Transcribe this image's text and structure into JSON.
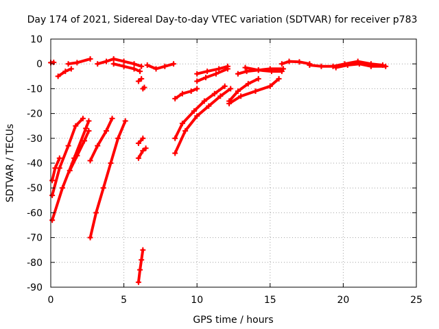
{
  "chart_data": {
    "type": "scatter",
    "title": "Day 174 of 2021, Sidereal Day-to-day VTEC variation (SDTVAR) for receiver p783",
    "xlabel": "GPS time / hours",
    "ylabel": "SDTVAR / TECUs",
    "xlim": [
      0,
      25
    ],
    "ylim": [
      -90,
      10
    ],
    "xticks": [
      "0",
      "5",
      "10",
      "15",
      "20",
      "25"
    ],
    "yticks": [
      "10",
      "0",
      "-10",
      "-20",
      "-30",
      "-40",
      "-50",
      "-60",
      "-70",
      "-80",
      "-90"
    ],
    "grid": true,
    "marker": "plus",
    "series_color": "#ff0000",
    "series": [
      {
        "name": "seg1",
        "points": [
          [
            0.0,
            0.5
          ],
          [
            0.2,
            0.6
          ]
        ]
      },
      {
        "name": "seg2",
        "points": [
          [
            0.5,
            -5
          ],
          [
            1.0,
            -3
          ],
          [
            1.4,
            -2
          ]
        ]
      },
      {
        "name": "seg3",
        "points": [
          [
            1.2,
            0
          ],
          [
            1.8,
            0.5
          ],
          [
            2.7,
            2
          ]
        ]
      },
      {
        "name": "seg4",
        "points": [
          [
            3.2,
            0
          ],
          [
            3.8,
            1
          ],
          [
            4.3,
            2
          ],
          [
            5.0,
            1
          ],
          [
            5.7,
            0
          ],
          [
            6.2,
            -1
          ]
        ]
      },
      {
        "name": "seg5",
        "points": [
          [
            4.3,
            0
          ],
          [
            5.0,
            -1
          ],
          [
            5.7,
            -2
          ],
          [
            6.1,
            -3
          ]
        ]
      },
      {
        "name": "seg6",
        "points": [
          [
            6.6,
            -0.5
          ],
          [
            7.2,
            -2
          ],
          [
            7.8,
            -1
          ],
          [
            8.4,
            0
          ]
        ]
      },
      {
        "name": "seg7",
        "points": [
          [
            0.1,
            -47
          ],
          [
            0.3,
            -42
          ],
          [
            0.6,
            -38
          ]
        ]
      },
      {
        "name": "seg8",
        "points": [
          [
            0.1,
            -53
          ],
          [
            0.6,
            -42
          ],
          [
            1.2,
            -33
          ],
          [
            1.7,
            -25
          ],
          [
            2.2,
            -22
          ]
        ]
      },
      {
        "name": "seg9",
        "points": [
          [
            0.1,
            -63
          ],
          [
            0.8,
            -50
          ],
          [
            1.6,
            -38
          ],
          [
            2.4,
            -26
          ],
          [
            2.6,
            -23
          ]
        ]
      },
      {
        "name": "seg10",
        "points": [
          [
            1.3,
            -43
          ],
          [
            1.8,
            -37
          ],
          [
            2.3,
            -31
          ],
          [
            2.6,
            -27
          ]
        ]
      },
      {
        "name": "seg11",
        "points": [
          [
            2.7,
            -39
          ],
          [
            3.2,
            -33
          ],
          [
            3.8,
            -27
          ],
          [
            4.2,
            -22
          ]
        ]
      },
      {
        "name": "seg12",
        "points": [
          [
            2.7,
            -70
          ],
          [
            3.1,
            -60
          ],
          [
            3.6,
            -50
          ],
          [
            4.1,
            -40
          ],
          [
            4.6,
            -30
          ],
          [
            5.1,
            -23
          ]
        ]
      },
      {
        "name": "seg13",
        "points": [
          [
            6.0,
            -38
          ],
          [
            6.3,
            -35
          ],
          [
            6.5,
            -34
          ]
        ]
      },
      {
        "name": "seg14",
        "points": [
          [
            6.0,
            -32
          ],
          [
            6.3,
            -30
          ]
        ]
      },
      {
        "name": "seg15",
        "points": [
          [
            6.0,
            -7
          ],
          [
            6.2,
            -6
          ]
        ]
      },
      {
        "name": "seg16",
        "points": [
          [
            6.3,
            -10
          ],
          [
            6.4,
            -9.5
          ]
        ]
      },
      {
        "name": "seg17",
        "points": [
          [
            6.0,
            -88
          ],
          [
            6.1,
            -83
          ],
          [
            6.2,
            -79
          ],
          [
            6.3,
            -75
          ]
        ]
      },
      {
        "name": "seg18",
        "points": [
          [
            8.5,
            -14
          ],
          [
            9.0,
            -12
          ],
          [
            9.6,
            -11
          ],
          [
            10.0,
            -10
          ]
        ]
      },
      {
        "name": "seg19",
        "points": [
          [
            8.5,
            -30
          ],
          [
            9.0,
            -24
          ],
          [
            9.8,
            -19
          ],
          [
            10.5,
            -15
          ],
          [
            11.2,
            -12
          ],
          [
            11.9,
            -9
          ]
        ]
      },
      {
        "name": "seg20",
        "points": [
          [
            8.5,
            -36
          ],
          [
            9.2,
            -27
          ],
          [
            10.0,
            -21
          ],
          [
            10.8,
            -17
          ],
          [
            11.6,
            -13
          ],
          [
            12.3,
            -10
          ]
        ]
      },
      {
        "name": "seg21",
        "points": [
          [
            10.0,
            -4
          ],
          [
            10.7,
            -3
          ],
          [
            11.5,
            -2
          ],
          [
            12.1,
            -1
          ]
        ]
      },
      {
        "name": "seg22",
        "points": [
          [
            10.0,
            -7
          ],
          [
            10.6,
            -5.5
          ],
          [
            11.3,
            -4
          ],
          [
            12.1,
            -2
          ]
        ]
      },
      {
        "name": "seg23",
        "points": [
          [
            12.2,
            -15
          ],
          [
            12.8,
            -11
          ],
          [
            13.5,
            -8
          ],
          [
            14.2,
            -6
          ]
        ]
      },
      {
        "name": "seg24",
        "points": [
          [
            12.2,
            -16
          ],
          [
            13.0,
            -13
          ],
          [
            14.0,
            -11
          ],
          [
            15.0,
            -9
          ],
          [
            15.6,
            -6
          ]
        ]
      },
      {
        "name": "seg25",
        "points": [
          [
            12.8,
            -4
          ],
          [
            13.4,
            -3
          ],
          [
            14.2,
            -2.5
          ],
          [
            15.0,
            -2
          ],
          [
            15.9,
            -2
          ]
        ]
      },
      {
        "name": "seg26",
        "points": [
          [
            13.3,
            -1.5
          ],
          [
            14.2,
            -2.5
          ],
          [
            15.1,
            -3
          ],
          [
            15.8,
            -3
          ]
        ]
      },
      {
        "name": "seg27",
        "points": [
          [
            15.8,
            0
          ],
          [
            16.3,
            1
          ],
          [
            17.0,
            0.8
          ],
          [
            17.7,
            0
          ]
        ]
      },
      {
        "name": "seg28",
        "points": [
          [
            17.7,
            -0.5
          ],
          [
            18.5,
            -1
          ],
          [
            19.3,
            -1
          ],
          [
            20.1,
            0
          ],
          [
            21.0,
            1
          ],
          [
            21.9,
            0
          ],
          [
            22.7,
            -0.5
          ]
        ]
      },
      {
        "name": "seg29",
        "points": [
          [
            19.5,
            -1.5
          ],
          [
            20.3,
            -0.5
          ],
          [
            21.1,
            0
          ],
          [
            21.9,
            -1
          ],
          [
            22.9,
            -1
          ]
        ]
      }
    ]
  }
}
